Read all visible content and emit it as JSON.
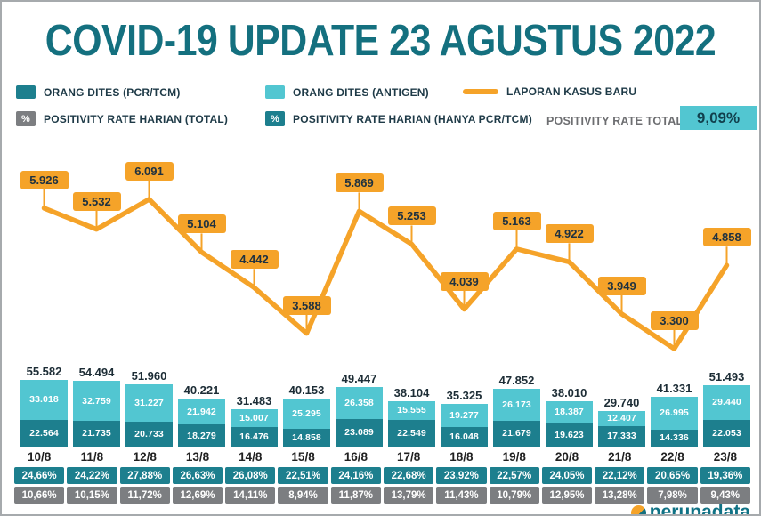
{
  "title": "COVID-19 UPDATE 23 AGUSTUS 2022",
  "legend": {
    "tested_pcr": "ORANG DITES (PCR/TCM)",
    "tested_antigen": "ORANG DITES (ANTIGEN)",
    "new_cases": "LAPORAN KASUS BARU",
    "percent_symbol": "%",
    "positivity_daily_total": "POSITIVITY RATE HARIAN (TOTAL)",
    "positivity_daily_pcr": "POSITIVITY RATE HARIAN (HANYA PCR/TCM)",
    "positivity_rate_total_label": "POSITIVITY RATE TOTAL",
    "positivity_rate_total_value": "9,09%"
  },
  "colors": {
    "dark_teal": "#1d7f8e",
    "light_teal": "#52c6d1",
    "orange": "#f5a329",
    "gray": "#7c7e81",
    "title_teal": "#14707f"
  },
  "chart_data": {
    "type": "combo: line (new cases) + stacked bar (people tested) + percent tables",
    "categories": [
      "10/8",
      "11/8",
      "12/8",
      "13/8",
      "14/8",
      "15/8",
      "16/8",
      "17/8",
      "18/8",
      "19/8",
      "20/8",
      "21/8",
      "22/8",
      "23/8"
    ],
    "series": [
      {
        "name": "LAPORAN KASUS BARU",
        "type": "line",
        "values": [
          5926,
          5532,
          6091,
          5104,
          4442,
          3588,
          5869,
          5253,
          4039,
          5163,
          4922,
          3949,
          3300,
          4858
        ],
        "labels": [
          "5.926",
          "5.532",
          "6.091",
          "5.104",
          "4.442",
          "3.588",
          "5.869",
          "5.253",
          "4.039",
          "5.163",
          "4.922",
          "3.949",
          "3.300",
          "4.858"
        ]
      },
      {
        "name": "ORANG DITES (ANTIGEN)",
        "type": "bar",
        "values": [
          33018,
          32759,
          31227,
          21942,
          15007,
          25295,
          26358,
          15555,
          19277,
          26173,
          18387,
          12407,
          26995,
          29440
        ],
        "labels": [
          "33.018",
          "32.759",
          "31.227",
          "21.942",
          "15.007",
          "25.295",
          "26.358",
          "15.555",
          "19.277",
          "26.173",
          "18.387",
          "12.407",
          "26.995",
          "29.440"
        ]
      },
      {
        "name": "ORANG DITES (PCR/TCM)",
        "type": "bar",
        "values": [
          22564,
          21735,
          20733,
          18279,
          16476,
          14858,
          23089,
          22549,
          16048,
          21679,
          19623,
          17333,
          14336,
          22053
        ],
        "labels": [
          "22.564",
          "21.735",
          "20.733",
          "18.279",
          "16.476",
          "14.858",
          "23.089",
          "22.549",
          "16.048",
          "21.679",
          "19.623",
          "17.333",
          "14.336",
          "22.053"
        ]
      }
    ],
    "bar_totals_labels": [
      "55.582",
      "54.494",
      "51.960",
      "40.221",
      "31.483",
      "40.153",
      "49.447",
      "38.104",
      "35.325",
      "47.852",
      "38.010",
      "29.740",
      "41.331",
      "51.493"
    ],
    "positivity_daily_pcr": [
      "24,66%",
      "24,22%",
      "27,88%",
      "26,63%",
      "26,08%",
      "22,51%",
      "24,16%",
      "22,68%",
      "23,92%",
      "22,57%",
      "24,05%",
      "22,12%",
      "20,65%",
      "19,36%"
    ],
    "positivity_daily_total": [
      "10,66%",
      "10,15%",
      "11,72%",
      "12,69%",
      "14,11%",
      "8,94%",
      "11,87%",
      "13,79%",
      "11,43%",
      "10,79%",
      "12,95%",
      "13,28%",
      "7,98%",
      "9,43%"
    ],
    "line_range": [
      3300,
      6091
    ],
    "legend_position": "top",
    "grid": false
  },
  "footer": {
    "brand": "perupadata"
  }
}
